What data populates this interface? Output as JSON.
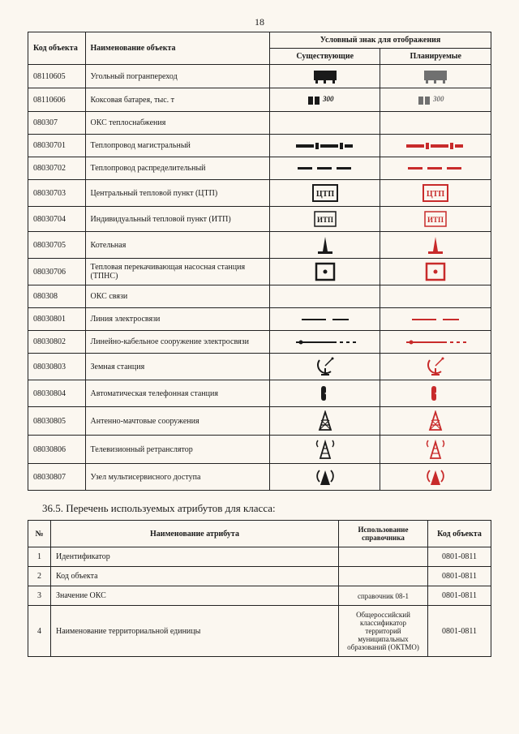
{
  "pageNumber": "18",
  "colors": {
    "existing": "#1a1a1a",
    "planned": "#c82b2b",
    "grey": "#707070"
  },
  "table1": {
    "headers": {
      "code": "Код объекта",
      "name": "Наименование объекта",
      "symbol": "Условный знак для отображения",
      "existing": "Существующие",
      "planned": "Планируемые"
    },
    "rows": [
      {
        "code": "08110605",
        "name": "Угольный погранпереход",
        "sym": "truck"
      },
      {
        "code": "08110606",
        "name": "Коксовая батарея, тыс. т",
        "sym": "battery300"
      },
      {
        "code": "080307",
        "name": "ОКС теплоснабжения",
        "sym": "none"
      },
      {
        "code": "08030701",
        "name": "Теплопровод магистральный",
        "sym": "thickline"
      },
      {
        "code": "08030702",
        "name": "Теплопровод распределительный",
        "sym": "dashline"
      },
      {
        "code": "08030703",
        "name": "Центральный тепловой пункт (ЦТП)",
        "sym": "ctp"
      },
      {
        "code": "08030704",
        "name": "Индивидуальный тепловой пункт (ИТП)",
        "sym": "itp"
      },
      {
        "code": "08030705",
        "name": "Котельная",
        "sym": "boiler"
      },
      {
        "code": "08030706",
        "name": "Тепловая перекачивающая насосная станция (ТПНС)",
        "sym": "dotbox"
      },
      {
        "code": "080308",
        "name": "ОКС связи",
        "sym": "none"
      },
      {
        "code": "08030801",
        "name": "Линия электросвязи",
        "sym": "thinline"
      },
      {
        "code": "08030802",
        "name": "Линейно-кабельное сооружение электросвязи",
        "sym": "cable"
      },
      {
        "code": "08030803",
        "name": "Земная станция",
        "sym": "dish"
      },
      {
        "code": "08030804",
        "name": "Автоматическая телефонная станция",
        "sym": "phone"
      },
      {
        "code": "08030805",
        "name": "Антенно-мачтовые сооружения",
        "sym": "mast"
      },
      {
        "code": "08030806",
        "name": "Телевизионный ретранслятор",
        "sym": "tvtower"
      },
      {
        "code": "08030807",
        "name": "Узел мультисервисного доступа",
        "sym": "multinode"
      }
    ]
  },
  "section365": "36.5.   Перечень используемых атрибутов для класса:",
  "table2": {
    "headers": {
      "num": "№",
      "attr": "Наименование атрибута",
      "ref": "Использование справочника",
      "obj": "Код объекта"
    },
    "rows": [
      {
        "num": "1",
        "attr": "Идентификатор",
        "ref": "",
        "obj": "0801-0811"
      },
      {
        "num": "2",
        "attr": "Код объекта",
        "ref": "",
        "obj": "0801-0811"
      },
      {
        "num": "3",
        "attr": "Значение ОКС",
        "ref": "справочник 08-1",
        "obj": "0801-0811"
      },
      {
        "num": "4",
        "attr": "Наименование территориальной единицы",
        "ref": "Общероссийский классификатор территорий муниципальных образований (ОКТМО)",
        "obj": "0801-0811"
      }
    ]
  }
}
